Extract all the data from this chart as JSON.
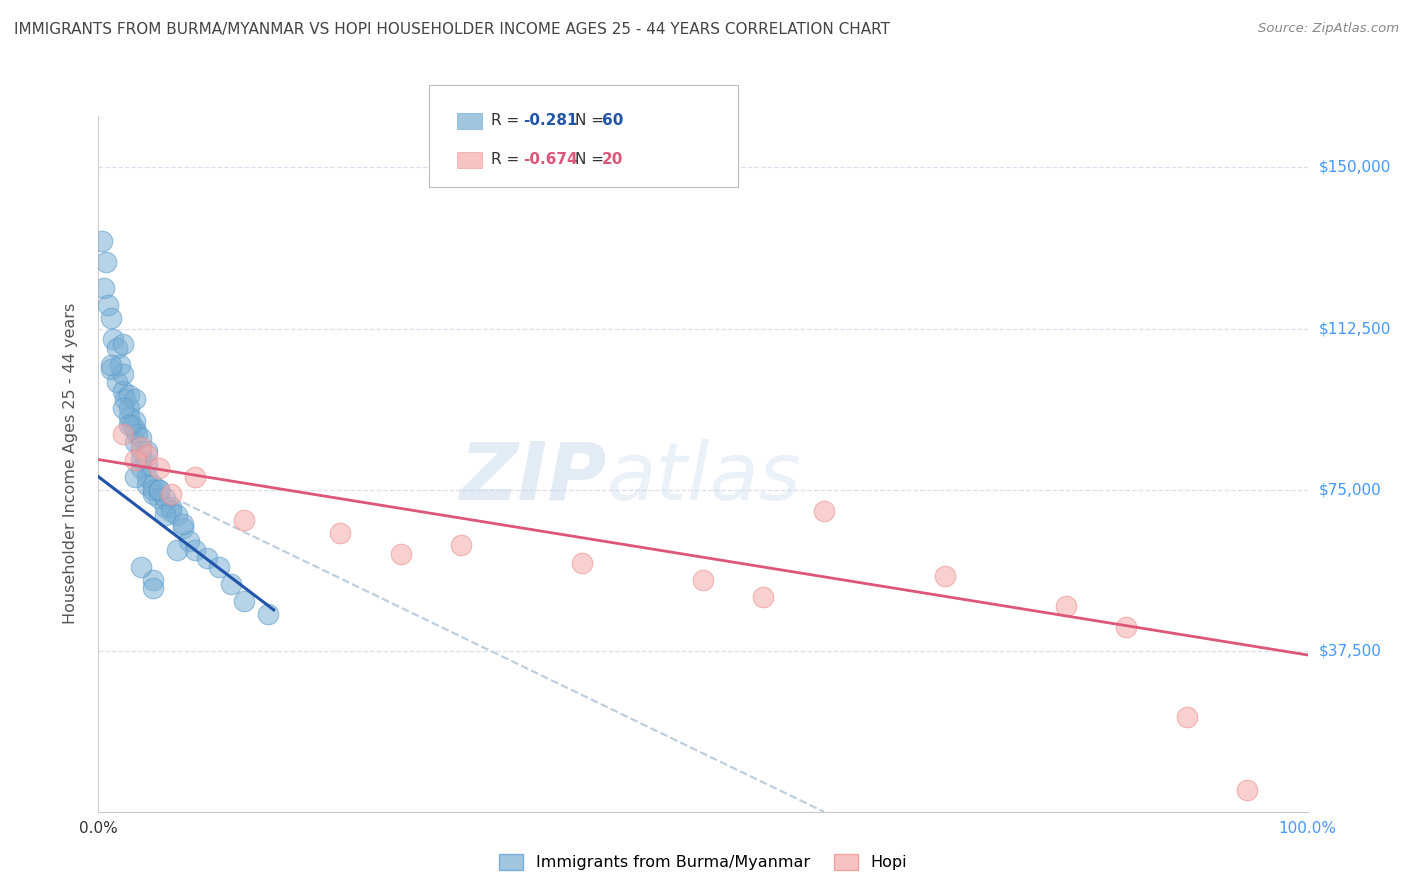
{
  "title": "IMMIGRANTS FROM BURMA/MYANMAR VS HOPI HOUSEHOLDER INCOME AGES 25 - 44 YEARS CORRELATION CHART",
  "source": "Source: ZipAtlas.com",
  "ylabel": "Householder Income Ages 25 - 44 years",
  "legend_blue": "Immigrants from Burma/Myanmar",
  "legend_pink": "Hopi",
  "R_blue": -0.281,
  "N_blue": 60,
  "R_pink": -0.674,
  "N_pink": 20,
  "yticks": [
    0,
    37500,
    75000,
    112500,
    150000
  ],
  "ytick_labels": [
    "",
    "$37,500",
    "$75,000",
    "$112,500",
    "$150,000"
  ],
  "ymin": 0,
  "ymax": 162000,
  "xmin": 0,
  "xmax": 100,
  "watermark_zip": "ZIP",
  "watermark_atlas": "atlas",
  "blue_scatter_x": [
    0.3,
    0.5,
    0.6,
    0.8,
    1.0,
    1.0,
    1.2,
    1.5,
    1.5,
    1.8,
    2.0,
    2.0,
    2.2,
    2.5,
    2.5,
    2.5,
    2.8,
    3.0,
    3.0,
    3.0,
    3.2,
    3.5,
    3.5,
    3.5,
    3.5,
    4.0,
    4.0,
    4.0,
    4.5,
    4.5,
    4.5,
    5.0,
    5.0,
    5.5,
    5.5,
    6.0,
    6.0,
    6.5,
    7.0,
    7.5,
    8.0,
    9.0,
    10.0,
    11.0,
    12.0,
    14.0,
    2.0,
    3.0,
    4.0,
    5.0,
    1.0,
    2.0,
    2.5,
    3.0,
    4.5,
    6.5,
    3.5,
    4.5,
    5.5,
    7.0
  ],
  "blue_scatter_y": [
    133000,
    122000,
    128000,
    118000,
    115000,
    103000,
    110000,
    108000,
    100000,
    104000,
    98000,
    102000,
    96000,
    94000,
    97000,
    92000,
    90000,
    89000,
    86000,
    91000,
    88000,
    87000,
    84000,
    82000,
    80000,
    81000,
    78000,
    76000,
    76000,
    74000,
    75000,
    75000,
    73000,
    73000,
    71000,
    71000,
    70000,
    69000,
    66000,
    63000,
    61000,
    59000,
    57000,
    53000,
    49000,
    46000,
    109000,
    96000,
    84000,
    75000,
    104000,
    94000,
    90000,
    78000,
    54000,
    61000,
    57000,
    52000,
    69000,
    67000
  ],
  "pink_scatter_x": [
    2.0,
    3.5,
    4.0,
    5.0,
    8.0,
    12.0,
    20.0,
    30.0,
    40.0,
    50.0,
    60.0,
    70.0,
    80.0,
    85.0,
    90.0,
    95.0,
    3.0,
    6.0,
    25.0,
    55.0
  ],
  "pink_scatter_y": [
    88000,
    85000,
    83000,
    80000,
    78000,
    68000,
    65000,
    62000,
    58000,
    54000,
    70000,
    55000,
    48000,
    43000,
    22000,
    5000,
    82000,
    74000,
    60000,
    50000
  ],
  "blue_line_x": [
    0.0,
    14.5
  ],
  "blue_line_y": [
    78000,
    47000
  ],
  "pink_line_x": [
    0.0,
    100.0
  ],
  "pink_line_y": [
    82000,
    36500
  ],
  "dash_line_x": [
    7.0,
    60.0
  ],
  "dash_line_y": [
    72000,
    0
  ],
  "blue_color": "#7BAFD4",
  "blue_color_edge": "#5599CC",
  "pink_color": "#F4AAAA",
  "pink_color_edge": "#EE8888",
  "blue_line_color": "#2255AA",
  "pink_line_color": "#DD5577",
  "dash_color": "#BBCCDD",
  "background_color": "#FFFFFF",
  "grid_color": "#DDDDEE",
  "title_color": "#444444",
  "axis_label_color": "#555555",
  "ytick_color_right": "#4499FF",
  "xtick_color_left": "#333333",
  "xtick_color_right": "#4499FF"
}
